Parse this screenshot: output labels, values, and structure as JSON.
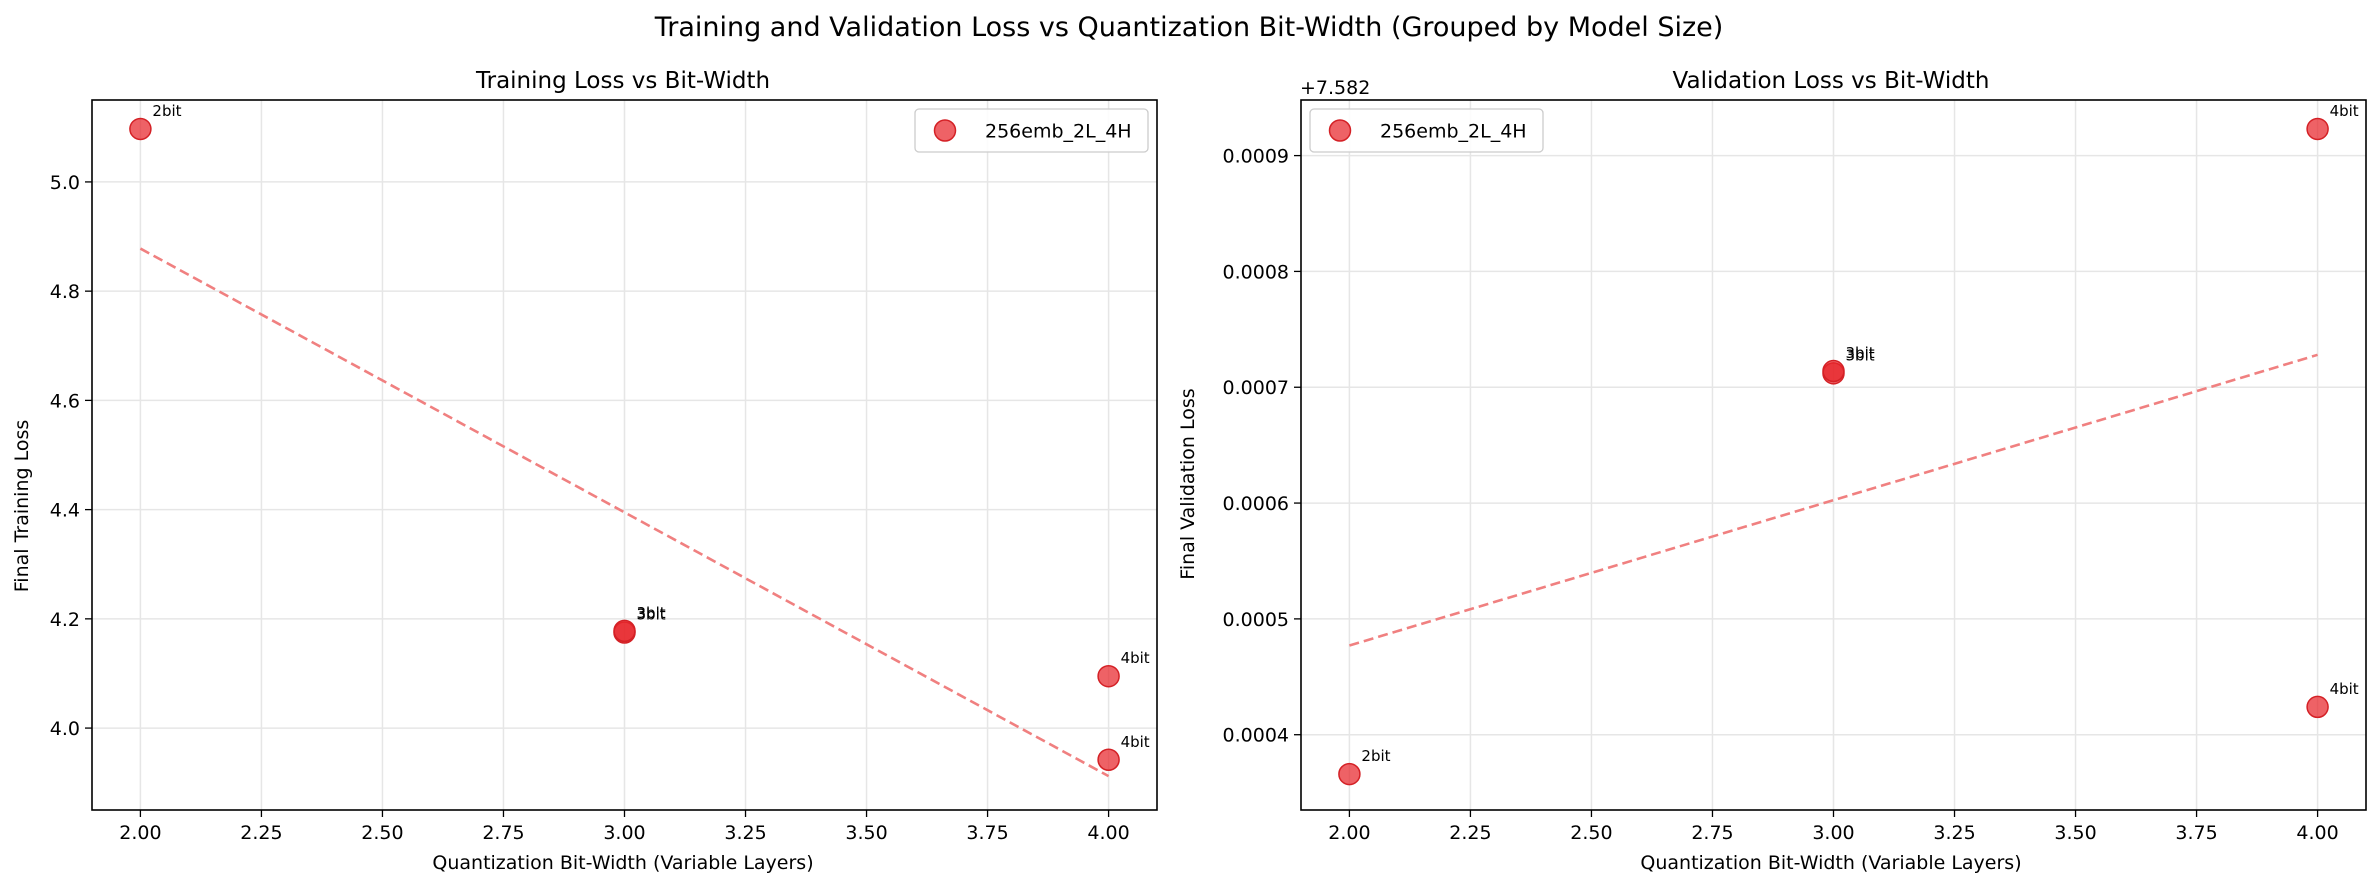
{
  "suptitle": "Training and Validation Loss vs Quantization Bit-Width (Grouped by Model Size)",
  "colors": {
    "series": "#e8262b",
    "trend": "#f08080",
    "grid": "#e6e6e6"
  },
  "chart_data": [
    {
      "type": "scatter",
      "title": "Training Loss vs Bit-Width",
      "xlabel": "Quantization Bit-Width (Variable Layers)",
      "ylabel": "Final Training Loss",
      "xlim": [
        1.9,
        4.1
      ],
      "ylim": [
        3.85,
        5.15
      ],
      "xticks": [
        "2.00",
        "2.25",
        "2.50",
        "2.75",
        "3.00",
        "3.25",
        "3.50",
        "3.75",
        "4.00"
      ],
      "yticks": [
        "4.0",
        "4.2",
        "4.4",
        "4.6",
        "4.8",
        "5.0"
      ],
      "ytick_values": [
        4.0,
        4.2,
        4.4,
        4.6,
        4.8,
        5.0
      ],
      "offset_label": "",
      "grid": true,
      "legend_location": "upper right",
      "series": [
        {
          "name": "256emb_2L_4H",
          "points": [
            {
              "x": 2,
              "y": 5.097,
              "label": "2bit"
            },
            {
              "x": 3,
              "y": 4.175,
              "label": "3bit"
            },
            {
              "x": 3,
              "y": 4.178,
              "label": "3bit"
            },
            {
              "x": 4,
              "y": 4.095,
              "label": "4bit"
            },
            {
              "x": 4,
              "y": 3.942,
              "label": "4bit"
            }
          ]
        }
      ],
      "trendline": {
        "x": [
          2,
          4
        ],
        "y": [
          4.878,
          3.912
        ]
      }
    },
    {
      "type": "scatter",
      "title": "Validation Loss vs Bit-Width",
      "xlabel": "Quantization Bit-Width (Variable Layers)",
      "ylabel": "Final Validation Loss",
      "xlim": [
        1.9,
        4.1
      ],
      "ylim": [
        0.000335,
        0.000948
      ],
      "xticks": [
        "2.00",
        "2.25",
        "2.50",
        "2.75",
        "3.00",
        "3.25",
        "3.50",
        "3.75",
        "4.00"
      ],
      "yticks": [
        "0.0004",
        "0.0005",
        "0.0006",
        "0.0007",
        "0.0008",
        "0.0009"
      ],
      "ytick_values": [
        0.0004,
        0.0005,
        0.0006,
        0.0007,
        0.0008,
        0.0009
      ],
      "offset_label": "+7.582",
      "grid": true,
      "legend_location": "upper left",
      "series": [
        {
          "name": "256emb_2L_4H",
          "points": [
            {
              "x": 2,
              "y": 0.000366,
              "label": "2bit"
            },
            {
              "x": 3,
              "y": 0.000712,
              "label": "3bit"
            },
            {
              "x": 3,
              "y": 0.000714,
              "label": "3bit"
            },
            {
              "x": 4,
              "y": 0.000923,
              "label": "4bit"
            },
            {
              "x": 4,
              "y": 0.000424,
              "label": "4bit"
            }
          ]
        }
      ],
      "trendline": {
        "x": [
          2,
          4
        ],
        "y": [
          0.000477,
          0.000728
        ]
      }
    }
  ]
}
